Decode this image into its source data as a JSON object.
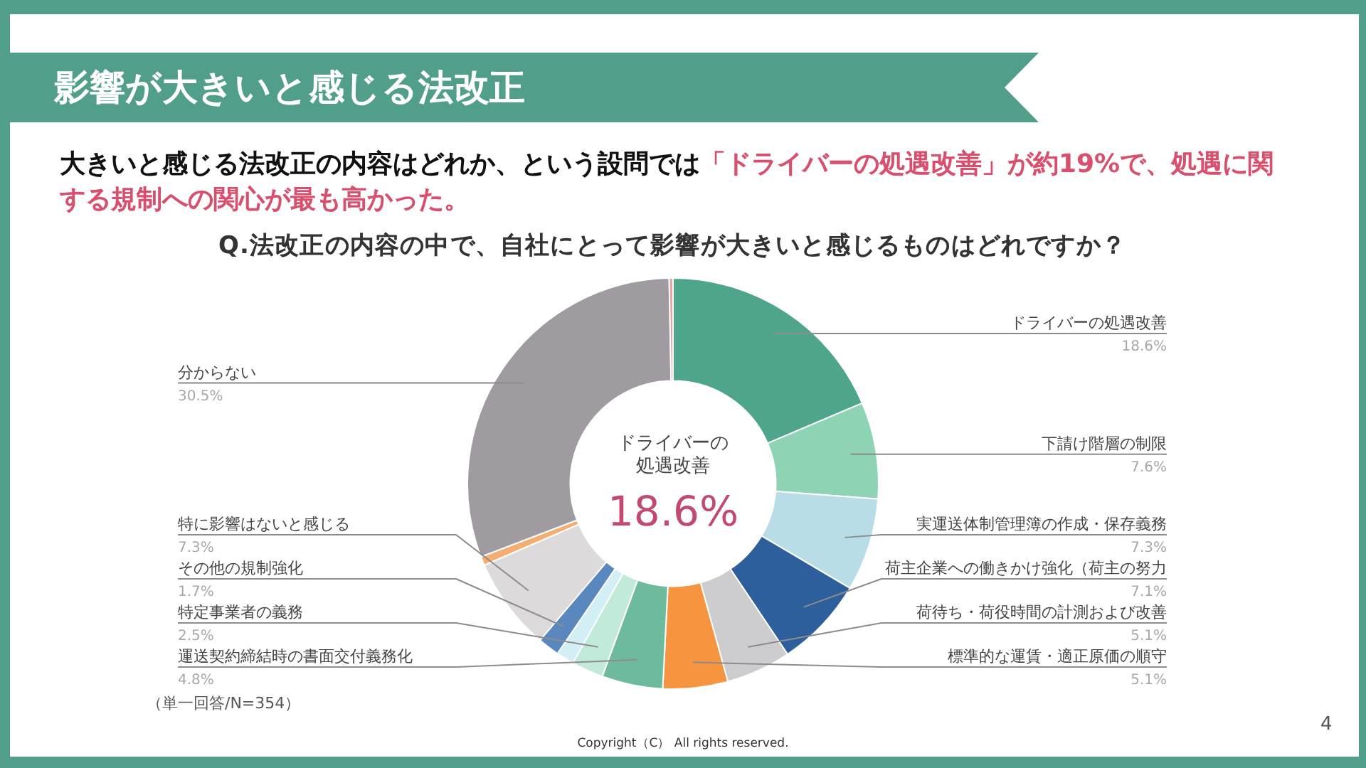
{
  "chart_data": {
    "type": "donut",
    "title": "影響が大きいと感じる法改正",
    "subtitle": "Q.法改正の内容の中で、自社にとって影響が大きいと感じるものはどれですか？",
    "categories": [
      "ドライバーの処遇改善",
      "下請け階層の制限",
      "実運送体制管理簿の作成・保存義務",
      "荷主企業への働きかけ強化（荷主の努力",
      "荷待ち・荷役時間の計測および改善",
      "標準的な運賃・適正原価の順守",
      "運送契約締結時の書面交付義務化",
      "特定事業者の義務",
      null,
      "その他の規制強化",
      "特に影響はないと感じる",
      null,
      "分からない",
      null
    ],
    "values": [
      18.6,
      7.6,
      7.3,
      7.1,
      5.1,
      5.1,
      4.8,
      2.5,
      1.4,
      1.7,
      7.3,
      0.7,
      30.5,
      0.3
    ],
    "colors": [
      "#4fa58b",
      "#8dd3b4",
      "#b8dde7",
      "#2e5f9d",
      "#cdcdd0",
      "#f6943f",
      "#6dba9c",
      "#c2ead8",
      "#d3eff6",
      "#5b87bf",
      "#dcdadb",
      "#f5ad72",
      "#9f9ba0",
      "#eaa39d"
    ],
    "value_labels": [
      "18.6%",
      "7.6%",
      "7.3%",
      "7.1%",
      "5.1%",
      "5.1%",
      "4.8%",
      "2.5%",
      null,
      "1.7%",
      "7.3%",
      null,
      "30.5%",
      null
    ],
    "annotations": [
      "大きいと感じる法改正の内容はどれか、という設問では",
      "「ドライバーの処遇改善」が約19%で、処遇に関する規制への関心が最も高かった。",
      "ドライバーの",
      "処遇改善",
      "18.6%",
      "（単一回答/N=354）",
      "Copyright（C） All rights reserved.",
      "4"
    ]
  }
}
